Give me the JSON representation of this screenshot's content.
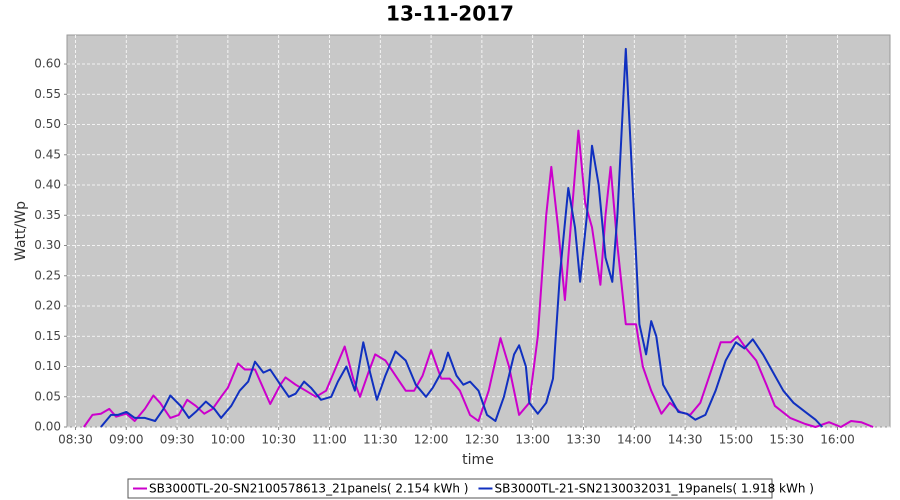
{
  "chart_data": {
    "type": "line",
    "title": "13-11-2017",
    "x_label": "time",
    "y_label": "Watt/Wp",
    "xlim": [
      "08:25",
      "16:31"
    ],
    "xticks": [
      "08:30",
      "09:00",
      "09:30",
      "10:00",
      "10:30",
      "11:00",
      "11:30",
      "12:00",
      "12:30",
      "13:00",
      "13:30",
      "14:00",
      "14:30",
      "15:00",
      "15:30",
      "16:00"
    ],
    "ylim": [
      0,
      0.648
    ],
    "yticks": [
      {
        "value": 0,
        "label": "0.00"
      },
      0.05,
      {
        "value": 0.1,
        "label": "0.10"
      },
      0.15,
      {
        "value": 0.2,
        "label": "0.20"
      },
      0.25,
      {
        "value": 0.3,
        "label": "0.30"
      },
      0.35,
      {
        "value": 0.4,
        "label": "0.40"
      },
      0.45,
      {
        "value": 0.5,
        "label": "0.50"
      },
      0.55,
      {
        "value": 0.6,
        "label": "0.60"
      }
    ],
    "grid": true,
    "legend": "bottom",
    "series": [
      {
        "name": "SB3000TL-20-SN2100578613_21panels( 2.154 kWh )",
        "color": "#cc00cc",
        "x": [
          "08:35",
          "08:40",
          "08:45",
          "08:50",
          "08:54",
          "09:00",
          "09:05",
          "09:11",
          "09:16",
          "09:20",
          "09:26",
          "09:31",
          "09:36",
          "09:41",
          "09:46",
          "09:51",
          "09:56",
          "10:00",
          "10:06",
          "10:10",
          "10:16",
          "10:20",
          "10:25",
          "10:31",
          "10:34",
          "10:40",
          "10:46",
          "10:52",
          "10:58",
          "11:04",
          "11:09",
          "11:14",
          "11:18",
          "11:23",
          "11:27",
          "11:33",
          "11:39",
          "11:45",
          "11:50",
          "11:55",
          "12:00",
          "12:06",
          "12:11",
          "12:17",
          "12:23",
          "12:28",
          "12:34",
          "12:41",
          "12:46",
          "12:52",
          "12:58",
          "13:03",
          "13:08",
          "13:11",
          "13:15",
          "13:19",
          "13:23",
          "13:27",
          "13:31",
          "13:35",
          "13:40",
          "13:43",
          "13:46",
          "13:50",
          "13:55",
          "14:01",
          "14:05",
          "14:10",
          "14:16",
          "14:21",
          "14:27",
          "14:33",
          "14:39",
          "14:45",
          "14:51",
          "14:57",
          "15:01",
          "15:06",
          "15:12",
          "15:18",
          "15:23",
          "15:32",
          "15:41",
          "15:47",
          "15:55",
          "16:02",
          "16:08",
          "16:14",
          "16:21"
        ],
        "values": [
          0,
          0.02,
          0.022,
          0.03,
          0.017,
          0.022,
          0.01,
          0.03,
          0.052,
          0.04,
          0.015,
          0.02,
          0.045,
          0.035,
          0.022,
          0.03,
          0.05,
          0.065,
          0.105,
          0.095,
          0.095,
          0.07,
          0.038,
          0.07,
          0.082,
          0.07,
          0.06,
          0.05,
          0.06,
          0.1,
          0.133,
          0.08,
          0.05,
          0.09,
          0.12,
          0.11,
          0.085,
          0.06,
          0.06,
          0.085,
          0.127,
          0.08,
          0.08,
          0.06,
          0.02,
          0.01,
          0.06,
          0.147,
          0.1,
          0.02,
          0.04,
          0.15,
          0.35,
          0.43,
          0.33,
          0.21,
          0.35,
          0.49,
          0.37,
          0.33,
          0.235,
          0.35,
          0.43,
          0.3,
          0.17,
          0.17,
          0.1,
          0.06,
          0.022,
          0.04,
          0.025,
          0.02,
          0.04,
          0.09,
          0.14,
          0.14,
          0.15,
          0.13,
          0.11,
          0.07,
          0.035,
          0.015,
          0.005,
          0,
          0.008,
          0,
          0.01,
          0.008,
          0
        ]
      },
      {
        "name": "SB3000TL-21-SN2130032031_19panels( 1.918 kWh )",
        "color": "#1030c0",
        "x": [
          "08:45",
          "08:51",
          "08:55",
          "09:00",
          "09:05",
          "09:11",
          "09:17",
          "09:22",
          "09:26",
          "09:32",
          "09:37",
          "09:41",
          "09:47",
          "09:52",
          "09:56",
          "10:02",
          "10:07",
          "10:12",
          "10:16",
          "10:21",
          "10:25",
          "10:31",
          "10:36",
          "10:40",
          "10:45",
          "10:49",
          "10:55",
          "11:01",
          "11:05",
          "11:10",
          "11:15",
          "11:20",
          "11:24",
          "11:28",
          "11:33",
          "11:39",
          "11:45",
          "11:51",
          "11:57",
          "12:01",
          "12:07",
          "12:10",
          "12:15",
          "12:19",
          "12:23",
          "12:28",
          "12:33",
          "12:38",
          "12:43",
          "12:49",
          "12:52",
          "12:56",
          "12:58",
          "13:03",
          "13:08",
          "13:12",
          "13:16",
          "13:21",
          "13:25",
          "13:28",
          "13:32",
          "13:35",
          "13:39",
          "13:43",
          "13:47",
          "13:50",
          "13:55",
          "13:59",
          "14:03",
          "14:07",
          "14:10",
          "14:13",
          "14:17",
          "14:21",
          "14:26",
          "14:31",
          "14:36",
          "14:42",
          "14:48",
          "14:54",
          "15:00",
          "15:05",
          "15:10",
          "15:16",
          "15:22",
          "15:28",
          "15:34",
          "15:41",
          "15:47",
          "15:51"
        ],
        "values": [
          0,
          0.02,
          0.02,
          0.025,
          0.015,
          0.015,
          0.01,
          0.03,
          0.052,
          0.035,
          0.015,
          0.025,
          0.042,
          0.03,
          0.015,
          0.035,
          0.06,
          0.075,
          0.108,
          0.09,
          0.095,
          0.07,
          0.05,
          0.055,
          0.075,
          0.065,
          0.045,
          0.05,
          0.075,
          0.1,
          0.06,
          0.14,
          0.09,
          0.045,
          0.085,
          0.125,
          0.11,
          0.07,
          0.05,
          0.065,
          0.095,
          0.123,
          0.085,
          0.07,
          0.075,
          0.06,
          0.02,
          0.01,
          0.05,
          0.12,
          0.135,
          0.1,
          0.04,
          0.022,
          0.04,
          0.08,
          0.25,
          0.395,
          0.33,
          0.24,
          0.35,
          0.465,
          0.4,
          0.28,
          0.24,
          0.35,
          0.625,
          0.4,
          0.17,
          0.12,
          0.175,
          0.15,
          0.07,
          0.05,
          0.025,
          0.022,
          0.012,
          0.02,
          0.06,
          0.11,
          0.14,
          0.13,
          0.145,
          0.12,
          0.09,
          0.06,
          0.04,
          0.025,
          0.012,
          0
        ]
      }
    ]
  }
}
